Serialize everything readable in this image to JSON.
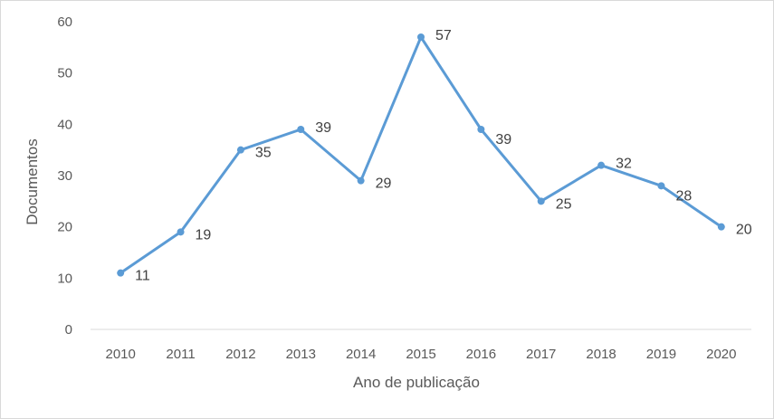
{
  "chart_data": {
    "type": "line",
    "title": "",
    "xlabel": "Ano de publicação",
    "ylabel": "Documentos",
    "categories": [
      "2010",
      "2011",
      "2012",
      "2013",
      "2014",
      "2015",
      "2016",
      "2017",
      "2018",
      "2019",
      "2020"
    ],
    "series": [
      {
        "values": [
          11,
          19,
          35,
          39,
          29,
          57,
          39,
          25,
          32,
          28,
          20
        ],
        "color": "#5b9bd5"
      }
    ],
    "ylim": [
      0,
      60
    ],
    "yticks": [
      0,
      10,
      20,
      30,
      40,
      50,
      60
    ],
    "grid": false,
    "legend": "none",
    "axis_color": "#d9d9d9",
    "text_color": "#595959"
  }
}
